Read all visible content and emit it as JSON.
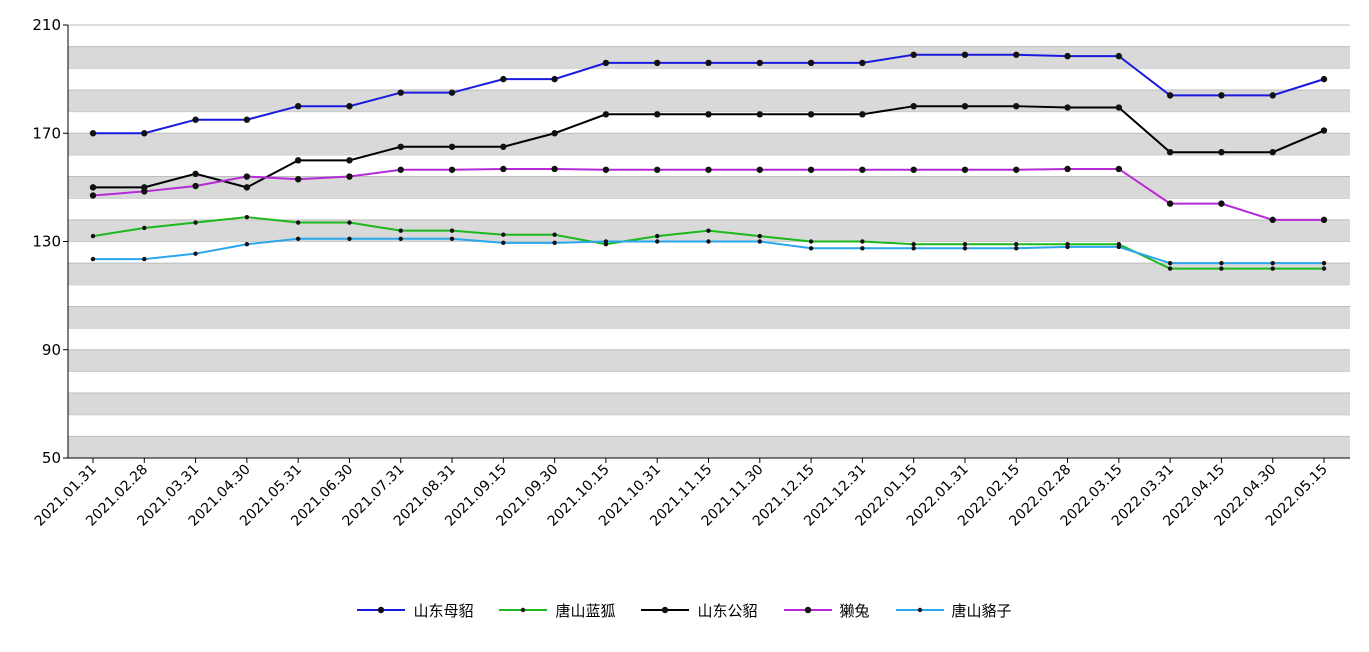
{
  "chart_data": {
    "type": "line",
    "y_ticks": [
      50,
      90,
      130,
      170,
      210
    ],
    "ylim": [
      50,
      210
    ],
    "grid": "horizontal alternating bands",
    "legend_position": "bottom",
    "categories": [
      "2021.01.31",
      "2021.02.28",
      "2021.03.31",
      "2021.04.30",
      "2021.05.31",
      "2021.06.30",
      "2021.07.31",
      "2021.08.31",
      "2021.09.15",
      "2021.09.30",
      "2021.10.15",
      "2021.10.31",
      "2021.11.15",
      "2021.11.30",
      "2021.12.15",
      "2021.12.31",
      "2022.01.15",
      "2022.01.31",
      "2022.02.15",
      "2022.02.28",
      "2022.03.15",
      "2022.03.31",
      "2022.04.15",
      "2022.04.30",
      "2022.05.15"
    ],
    "series": [
      {
        "name": "山东母貂",
        "color": "#1a1adf",
        "marker": "large",
        "values": [
          170,
          170,
          175,
          175,
          180,
          180,
          185,
          185,
          190,
          190,
          196,
          196,
          196,
          196,
          196,
          196,
          199,
          199,
          199,
          198.5,
          198.5,
          184,
          184,
          184,
          190
        ]
      },
      {
        "name": "唐山蓝狐",
        "color": "#1cb81c",
        "marker": "small",
        "values": [
          132,
          135,
          137,
          139,
          137,
          137,
          134,
          134,
          132.5,
          132.5,
          129,
          132,
          134,
          132,
          130,
          130,
          129,
          129,
          129,
          129,
          129,
          120,
          120,
          120,
          120
        ]
      },
      {
        "name": "山东公貂",
        "color": "#000000",
        "marker": "large",
        "values": [
          150,
          150,
          155,
          150,
          160,
          160,
          165,
          165,
          165,
          170,
          177,
          177,
          177,
          177,
          177,
          177,
          180,
          180,
          180,
          179.5,
          179.5,
          163,
          163,
          163,
          171
        ]
      },
      {
        "name": "獭兔",
        "color": "#b52ad6",
        "marker": "large",
        "values": [
          147,
          148.5,
          150.5,
          154,
          153,
          154,
          156.5,
          156.5,
          156.8,
          156.8,
          156.5,
          156.5,
          156.5,
          156.5,
          156.5,
          156.5,
          156.5,
          156.5,
          156.5,
          156.8,
          156.8,
          144,
          144,
          138,
          138
        ]
      },
      {
        "name": "唐山貉子",
        "color": "#2aa6ec",
        "marker": "small",
        "values": [
          123.5,
          123.5,
          125.5,
          129,
          131,
          131,
          131,
          131,
          129.5,
          129.5,
          130,
          130,
          130,
          130,
          127.5,
          127.5,
          127.5,
          127.5,
          127.5,
          128,
          128,
          122,
          122,
          122,
          122
        ]
      }
    ]
  }
}
